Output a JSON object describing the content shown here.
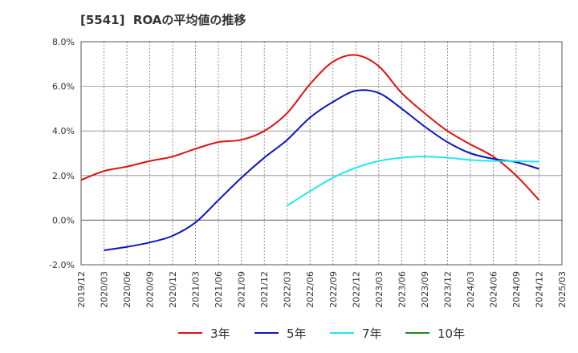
{
  "chart_data": {
    "type": "line",
    "title": "[5541]  ROAの平均値の推移",
    "xlabel": "",
    "ylabel": "",
    "ylim": [
      -2.0,
      8.0
    ],
    "y_ticks": [
      "-2.0%",
      "0.0%",
      "2.0%",
      "4.0%",
      "6.0%",
      "8.0%"
    ],
    "y_tick_values": [
      -2.0,
      0.0,
      2.0,
      4.0,
      6.0,
      8.0
    ],
    "x_ticks": [
      "2019/12",
      "2020/03",
      "2020/06",
      "2020/09",
      "2020/12",
      "2021/03",
      "2021/06",
      "2021/09",
      "2021/12",
      "2022/03",
      "2022/06",
      "2022/09",
      "2022/12",
      "2023/03",
      "2023/06",
      "2023/09",
      "2023/12",
      "2024/03",
      "2024/06",
      "2024/09",
      "2024/12",
      "2025/03"
    ],
    "grid": true,
    "legend_position": "bottom",
    "series": [
      {
        "name": "3年",
        "color": "#dd1111",
        "x": [
          "2019/12",
          "2020/03",
          "2020/06",
          "2020/09",
          "2020/12",
          "2021/03",
          "2021/06",
          "2021/09",
          "2021/12",
          "2022/03",
          "2022/06",
          "2022/09",
          "2022/12",
          "2023/03",
          "2023/06",
          "2023/09",
          "2023/12",
          "2024/03",
          "2024/06",
          "2024/09",
          "2024/12"
        ],
        "values": [
          1.8,
          2.2,
          2.4,
          2.65,
          2.85,
          3.2,
          3.5,
          3.6,
          4.0,
          4.8,
          6.1,
          7.1,
          7.4,
          6.9,
          5.7,
          4.8,
          4.0,
          3.4,
          2.85,
          2.0,
          0.9
        ]
      },
      {
        "name": "5年",
        "color": "#0a17b8",
        "x": [
          "2020/03",
          "2020/06",
          "2020/09",
          "2020/12",
          "2021/03",
          "2021/06",
          "2021/09",
          "2021/12",
          "2022/03",
          "2022/06",
          "2022/09",
          "2022/12",
          "2023/03",
          "2023/06",
          "2023/09",
          "2023/12",
          "2024/03",
          "2024/06",
          "2024/09",
          "2024/12"
        ],
        "values": [
          -1.35,
          -1.2,
          -1.0,
          -0.7,
          -0.1,
          0.9,
          1.9,
          2.8,
          3.6,
          4.6,
          5.3,
          5.8,
          5.7,
          5.0,
          4.2,
          3.5,
          3.0,
          2.75,
          2.6,
          2.3
        ]
      },
      {
        "name": "7年",
        "color": "#1ee8ee",
        "x": [
          "2022/03",
          "2022/06",
          "2022/09",
          "2022/12",
          "2023/03",
          "2023/06",
          "2023/09",
          "2023/12",
          "2024/03",
          "2024/06",
          "2024/09",
          "2024/12"
        ],
        "values": [
          0.65,
          1.3,
          1.9,
          2.35,
          2.65,
          2.8,
          2.85,
          2.8,
          2.7,
          2.65,
          2.65,
          2.62
        ]
      },
      {
        "name": "10年",
        "color": "#228822",
        "x": [],
        "values": []
      }
    ]
  }
}
